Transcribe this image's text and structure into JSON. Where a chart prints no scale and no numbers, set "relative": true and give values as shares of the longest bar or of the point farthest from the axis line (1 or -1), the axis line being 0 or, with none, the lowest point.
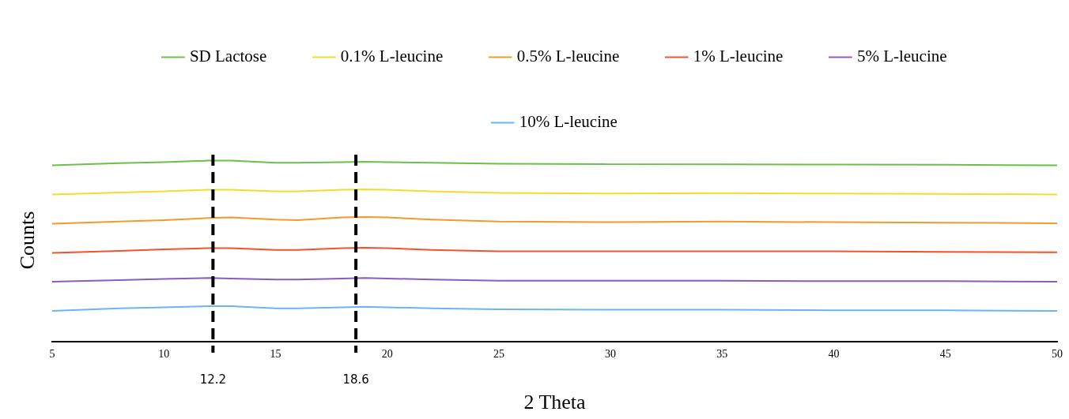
{
  "chart_data": {
    "type": "line",
    "xlabel": "2 Theta",
    "ylabel": "Counts",
    "relative": true,
    "legend": "top",
    "marker": "none",
    "line_style": "solid",
    "xlim": [
      5,
      50
    ],
    "xticks": [
      5,
      10,
      15,
      20,
      25,
      30,
      35,
      40,
      45,
      50
    ],
    "x": [
      5,
      8,
      10,
      12,
      13,
      15,
      16,
      18,
      19,
      20,
      22,
      25,
      30,
      35,
      40,
      45,
      50
    ],
    "series": [
      {
        "name": "SD Lactose",
        "color": "#6cc04a",
        "values": [
          0.974,
          0.986,
          0.991,
          1.0,
          1.0,
          0.988,
          0.988,
          0.991,
          0.994,
          0.991,
          0.988,
          0.983,
          0.98,
          0.98,
          0.978,
          0.977,
          0.974
        ]
      },
      {
        "name": "0.1% L-leucine",
        "color": "#f5dc2a",
        "values": [
          0.813,
          0.824,
          0.83,
          0.839,
          0.839,
          0.83,
          0.83,
          0.839,
          0.841,
          0.839,
          0.83,
          0.821,
          0.818,
          0.82,
          0.818,
          0.816,
          0.813
        ]
      },
      {
        "name": "0.5% L-leucine",
        "color": "#f29a2e",
        "values": [
          0.651,
          0.663,
          0.671,
          0.683,
          0.686,
          0.674,
          0.671,
          0.686,
          0.689,
          0.686,
          0.674,
          0.663,
          0.66,
          0.663,
          0.66,
          0.657,
          0.654
        ]
      },
      {
        "name": "1% L-leucine",
        "color": "#f5512b",
        "values": [
          0.49,
          0.501,
          0.51,
          0.516,
          0.516,
          0.507,
          0.507,
          0.516,
          0.519,
          0.516,
          0.507,
          0.499,
          0.499,
          0.499,
          0.499,
          0.496,
          0.493
        ]
      },
      {
        "name": "5% L-leucine",
        "color": "#8a5cc0",
        "values": [
          0.331,
          0.34,
          0.346,
          0.352,
          0.349,
          0.343,
          0.343,
          0.349,
          0.352,
          0.349,
          0.343,
          0.337,
          0.337,
          0.337,
          0.334,
          0.334,
          0.331
        ]
      },
      {
        "name": "10% L-leucine",
        "color": "#6cb4f5",
        "values": [
          0.17,
          0.184,
          0.19,
          0.196,
          0.196,
          0.184,
          0.184,
          0.19,
          0.193,
          0.19,
          0.184,
          0.179,
          0.176,
          0.176,
          0.173,
          0.173,
          0.17
        ]
      }
    ],
    "ref_lines": [
      {
        "axis": "x",
        "value": 12.2,
        "label": "12.2",
        "color": "#000000",
        "line_style": "dashed"
      },
      {
        "axis": "x",
        "value": 18.6,
        "label": "18.6",
        "color": "#000000",
        "line_style": "dashed"
      }
    ]
  }
}
